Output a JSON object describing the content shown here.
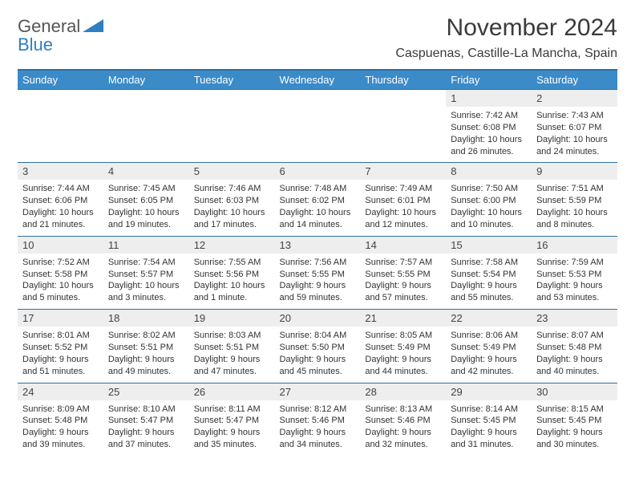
{
  "brand": {
    "name_part1": "General",
    "name_part2": "Blue",
    "logo_fill": "#2d7fc1"
  },
  "title": "November 2024",
  "location": "Caspuenas, Castille-La Mancha, Spain",
  "colors": {
    "header_bg": "#3b8bc9",
    "header_text": "#ffffff",
    "border": "#2f6fa3",
    "daynum_bg": "#eeeeee",
    "text": "#333333"
  },
  "day_headers": [
    "Sunday",
    "Monday",
    "Tuesday",
    "Wednesday",
    "Thursday",
    "Friday",
    "Saturday"
  ],
  "weeks": [
    [
      {
        "n": "",
        "sr": "",
        "ss": "",
        "dl": ""
      },
      {
        "n": "",
        "sr": "",
        "ss": "",
        "dl": ""
      },
      {
        "n": "",
        "sr": "",
        "ss": "",
        "dl": ""
      },
      {
        "n": "",
        "sr": "",
        "ss": "",
        "dl": ""
      },
      {
        "n": "",
        "sr": "",
        "ss": "",
        "dl": ""
      },
      {
        "n": "1",
        "sr": "Sunrise: 7:42 AM",
        "ss": "Sunset: 6:08 PM",
        "dl": "Daylight: 10 hours and 26 minutes."
      },
      {
        "n": "2",
        "sr": "Sunrise: 7:43 AM",
        "ss": "Sunset: 6:07 PM",
        "dl": "Daylight: 10 hours and 24 minutes."
      }
    ],
    [
      {
        "n": "3",
        "sr": "Sunrise: 7:44 AM",
        "ss": "Sunset: 6:06 PM",
        "dl": "Daylight: 10 hours and 21 minutes."
      },
      {
        "n": "4",
        "sr": "Sunrise: 7:45 AM",
        "ss": "Sunset: 6:05 PM",
        "dl": "Daylight: 10 hours and 19 minutes."
      },
      {
        "n": "5",
        "sr": "Sunrise: 7:46 AM",
        "ss": "Sunset: 6:03 PM",
        "dl": "Daylight: 10 hours and 17 minutes."
      },
      {
        "n": "6",
        "sr": "Sunrise: 7:48 AM",
        "ss": "Sunset: 6:02 PM",
        "dl": "Daylight: 10 hours and 14 minutes."
      },
      {
        "n": "7",
        "sr": "Sunrise: 7:49 AM",
        "ss": "Sunset: 6:01 PM",
        "dl": "Daylight: 10 hours and 12 minutes."
      },
      {
        "n": "8",
        "sr": "Sunrise: 7:50 AM",
        "ss": "Sunset: 6:00 PM",
        "dl": "Daylight: 10 hours and 10 minutes."
      },
      {
        "n": "9",
        "sr": "Sunrise: 7:51 AM",
        "ss": "Sunset: 5:59 PM",
        "dl": "Daylight: 10 hours and 8 minutes."
      }
    ],
    [
      {
        "n": "10",
        "sr": "Sunrise: 7:52 AM",
        "ss": "Sunset: 5:58 PM",
        "dl": "Daylight: 10 hours and 5 minutes."
      },
      {
        "n": "11",
        "sr": "Sunrise: 7:54 AM",
        "ss": "Sunset: 5:57 PM",
        "dl": "Daylight: 10 hours and 3 minutes."
      },
      {
        "n": "12",
        "sr": "Sunrise: 7:55 AM",
        "ss": "Sunset: 5:56 PM",
        "dl": "Daylight: 10 hours and 1 minute."
      },
      {
        "n": "13",
        "sr": "Sunrise: 7:56 AM",
        "ss": "Sunset: 5:55 PM",
        "dl": "Daylight: 9 hours and 59 minutes."
      },
      {
        "n": "14",
        "sr": "Sunrise: 7:57 AM",
        "ss": "Sunset: 5:55 PM",
        "dl": "Daylight: 9 hours and 57 minutes."
      },
      {
        "n": "15",
        "sr": "Sunrise: 7:58 AM",
        "ss": "Sunset: 5:54 PM",
        "dl": "Daylight: 9 hours and 55 minutes."
      },
      {
        "n": "16",
        "sr": "Sunrise: 7:59 AM",
        "ss": "Sunset: 5:53 PM",
        "dl": "Daylight: 9 hours and 53 minutes."
      }
    ],
    [
      {
        "n": "17",
        "sr": "Sunrise: 8:01 AM",
        "ss": "Sunset: 5:52 PM",
        "dl": "Daylight: 9 hours and 51 minutes."
      },
      {
        "n": "18",
        "sr": "Sunrise: 8:02 AM",
        "ss": "Sunset: 5:51 PM",
        "dl": "Daylight: 9 hours and 49 minutes."
      },
      {
        "n": "19",
        "sr": "Sunrise: 8:03 AM",
        "ss": "Sunset: 5:51 PM",
        "dl": "Daylight: 9 hours and 47 minutes."
      },
      {
        "n": "20",
        "sr": "Sunrise: 8:04 AM",
        "ss": "Sunset: 5:50 PM",
        "dl": "Daylight: 9 hours and 45 minutes."
      },
      {
        "n": "21",
        "sr": "Sunrise: 8:05 AM",
        "ss": "Sunset: 5:49 PM",
        "dl": "Daylight: 9 hours and 44 minutes."
      },
      {
        "n": "22",
        "sr": "Sunrise: 8:06 AM",
        "ss": "Sunset: 5:49 PM",
        "dl": "Daylight: 9 hours and 42 minutes."
      },
      {
        "n": "23",
        "sr": "Sunrise: 8:07 AM",
        "ss": "Sunset: 5:48 PM",
        "dl": "Daylight: 9 hours and 40 minutes."
      }
    ],
    [
      {
        "n": "24",
        "sr": "Sunrise: 8:09 AM",
        "ss": "Sunset: 5:48 PM",
        "dl": "Daylight: 9 hours and 39 minutes."
      },
      {
        "n": "25",
        "sr": "Sunrise: 8:10 AM",
        "ss": "Sunset: 5:47 PM",
        "dl": "Daylight: 9 hours and 37 minutes."
      },
      {
        "n": "26",
        "sr": "Sunrise: 8:11 AM",
        "ss": "Sunset: 5:47 PM",
        "dl": "Daylight: 9 hours and 35 minutes."
      },
      {
        "n": "27",
        "sr": "Sunrise: 8:12 AM",
        "ss": "Sunset: 5:46 PM",
        "dl": "Daylight: 9 hours and 34 minutes."
      },
      {
        "n": "28",
        "sr": "Sunrise: 8:13 AM",
        "ss": "Sunset: 5:46 PM",
        "dl": "Daylight: 9 hours and 32 minutes."
      },
      {
        "n": "29",
        "sr": "Sunrise: 8:14 AM",
        "ss": "Sunset: 5:45 PM",
        "dl": "Daylight: 9 hours and 31 minutes."
      },
      {
        "n": "30",
        "sr": "Sunrise: 8:15 AM",
        "ss": "Sunset: 5:45 PM",
        "dl": "Daylight: 9 hours and 30 minutes."
      }
    ]
  ]
}
